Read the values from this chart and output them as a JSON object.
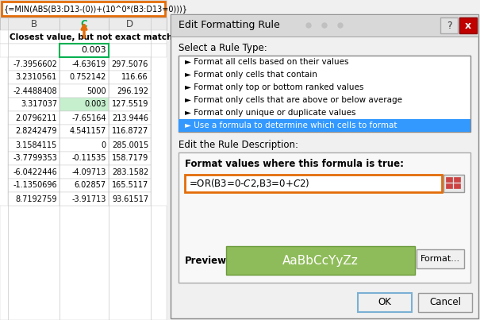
{
  "formula_bar_text": "{=MIN(ABS(B3:D13-(0))+(10^0*(B3:D13=0)))}",
  "spreadsheet_header": "Closest value, but not exact match",
  "cell_c2_value": "0.003",
  "rows": [
    [
      "-7.3956602",
      "-4.63619",
      "297.5076"
    ],
    [
      "3.2310561",
      "0.752142",
      "116.66"
    ],
    [
      "-2.4488408",
      "5000",
      "296.192"
    ],
    [
      "3.317037",
      "0.003",
      "127.5519"
    ],
    [
      "2.0796211",
      "-7.65164",
      "213.9446"
    ],
    [
      "2.8242479",
      "4.541157",
      "116.8727"
    ],
    [
      "3.1584115",
      "0",
      "285.0015"
    ],
    [
      "-3.7799353",
      "-0.11535",
      "158.7179"
    ],
    [
      "-6.0422446",
      "-4.09713",
      "283.1582"
    ],
    [
      "-1.1350696",
      "6.02857",
      "165.5117"
    ],
    [
      "8.7192759",
      "-3.91713",
      "93.61517"
    ]
  ],
  "highlighted_row": 3,
  "highlighted_col": 1,
  "highlight_color": "#c6efce",
  "col_c_color": "#00b050",
  "arrow_color": "#e36c09",
  "formula_bar_border": "#e36c09",
  "dialog_title": "Edit Formatting Rule",
  "rule_types": [
    "Format all cells based on their values",
    "Format only cells that contain",
    "Format only top or bottom ranked values",
    "Format only cells that are above or below average",
    "Format only unique or duplicate values",
    "Use a formula to determine which cells to format"
  ],
  "selected_rule_bg": "#3399ff",
  "selected_rule_text": "Use a formula to determine which cells to format",
  "edit_rule_label": "Edit the Rule Description:",
  "format_label": "Format values where this formula is true:",
  "formula_input": "=OR(B3=0-$C$2,B3=0+$C$2)",
  "formula_input_border": "#e36c09",
  "preview_label": "Preview:",
  "preview_text": "AaBbCcYyZz",
  "preview_bg": "#8fbc5a",
  "preview_text_color": "#ffffff",
  "button_format": "Format...",
  "button_ok": "OK",
  "button_cancel": "Cancel",
  "bg_color": "#f0f0f0",
  "excel_bg": "#ffffff",
  "grid_color": "#c8c8c8",
  "dialog_border": "#888888"
}
